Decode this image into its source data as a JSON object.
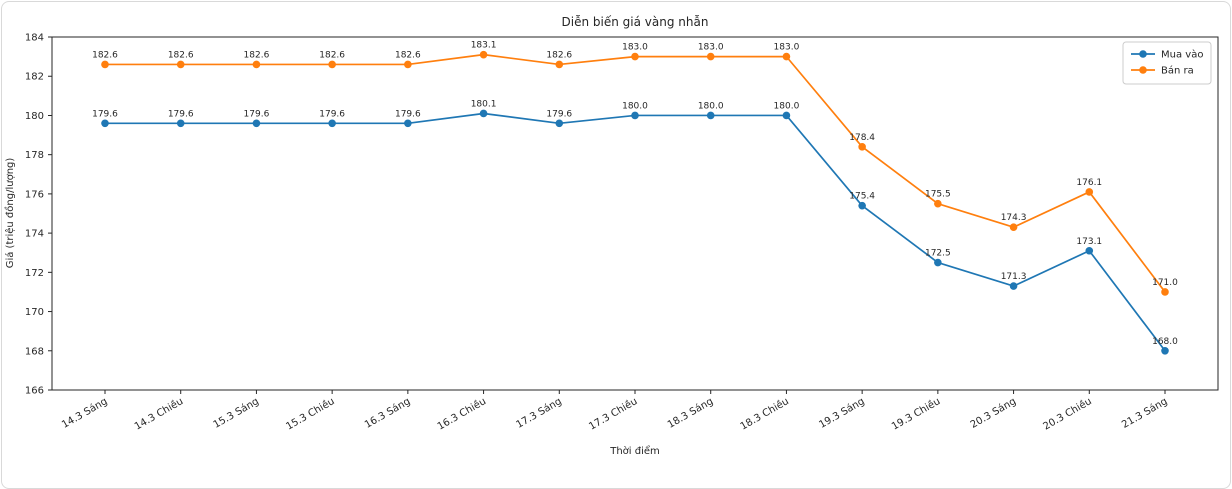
{
  "chart_data": {
    "type": "line",
    "title": "Diễn biến giá vàng nhẫn",
    "xlabel": "Thời điểm",
    "ylabel": "Giá (triệu đồng/lượng)",
    "categories": [
      "14.3 Sáng",
      "14.3 Chiều",
      "15.3 Sáng",
      "15.3 Chiều",
      "16.3 Sáng",
      "16.3 Chiều",
      "17.3 Sáng",
      "17.3 Chiều",
      "18.3 Sáng",
      "18.3 Chiều",
      "19.3 Sáng",
      "19.3 Chiều",
      "20.3 Sáng",
      "20.3 Chiều",
      "21.3 Sáng"
    ],
    "series": [
      {
        "name": "Mua vào",
        "color": "#1f77b4",
        "values": [
          179.6,
          179.6,
          179.6,
          179.6,
          179.6,
          180.1,
          179.6,
          180.0,
          180.0,
          180.0,
          175.4,
          172.5,
          171.3,
          173.1,
          168.0
        ]
      },
      {
        "name": "Bán ra",
        "color": "#ff7f0e",
        "values": [
          182.6,
          182.6,
          182.6,
          182.6,
          182.6,
          183.1,
          182.6,
          183.0,
          183.0,
          183.0,
          178.4,
          175.5,
          174.3,
          176.1,
          171.0
        ]
      }
    ],
    "ylim": [
      166,
      184
    ],
    "yticks": [
      166,
      168,
      170,
      172,
      174,
      176,
      178,
      180,
      182,
      184
    ],
    "grid": false,
    "legend_position": "upper right",
    "value_labels": true,
    "frame_color": "#262626",
    "value_label_decimals": 1
  }
}
